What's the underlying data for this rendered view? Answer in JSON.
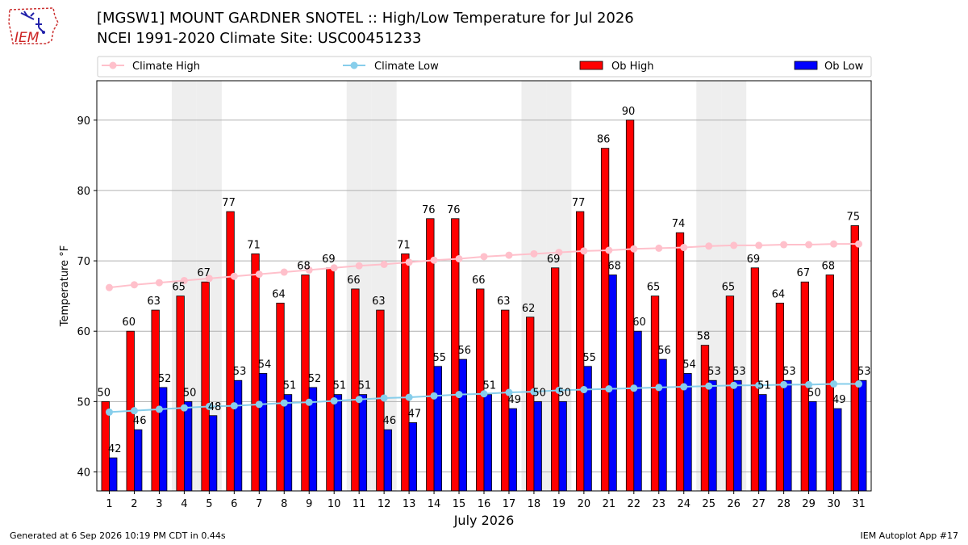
{
  "header": {
    "title_line1": "[MGSW1] MOUNT GARDNER SNOTEL :: High/Low Temperature for Jul 2026",
    "title_line2": "NCEI 1991-2020 Climate Site: USC00451233",
    "logo_text": "IEM"
  },
  "footer": {
    "left": "Generated at 6 Sep 2026 10:19 PM CDT in 0.44s",
    "right": "IEM Autoplot App #17"
  },
  "colors": {
    "ob_high": "#ff0000",
    "ob_low": "#0000ff",
    "climate_high": "#ffc0cb",
    "climate_low": "#87ceeb",
    "weekend_shade": "#eeeeee"
  },
  "chart_data": {
    "type": "bar",
    "xlabel": "July 2026",
    "ylabel": "Temperature °F",
    "ylim": [
      37.3,
      95.6
    ],
    "yticks": [
      40,
      50,
      60,
      70,
      80,
      90
    ],
    "grid": "horizontal",
    "legend_position": "top",
    "categories": [
      1,
      2,
      3,
      4,
      5,
      6,
      7,
      8,
      9,
      10,
      11,
      12,
      13,
      14,
      15,
      16,
      17,
      18,
      19,
      20,
      21,
      22,
      23,
      24,
      25,
      26,
      27,
      28,
      29,
      30,
      31
    ],
    "shaded_days": [
      4,
      5,
      11,
      12,
      18,
      19,
      25,
      26
    ],
    "series": [
      {
        "name": "Climate High",
        "type": "line",
        "values": [
          66.2,
          66.6,
          66.9,
          67.2,
          67.5,
          67.8,
          68.1,
          68.4,
          68.7,
          69.0,
          69.3,
          69.5,
          69.8,
          70.1,
          70.3,
          70.6,
          70.8,
          71.0,
          71.2,
          71.4,
          71.5,
          71.7,
          71.8,
          71.9,
          72.1,
          72.2,
          72.2,
          72.3,
          72.3,
          72.4,
          72.4
        ]
      },
      {
        "name": "Climate Low",
        "type": "line",
        "values": [
          48.5,
          48.7,
          48.9,
          49.1,
          49.3,
          49.4,
          49.6,
          49.8,
          49.9,
          50.1,
          50.3,
          50.5,
          50.6,
          50.8,
          51.0,
          51.1,
          51.3,
          51.4,
          51.6,
          51.7,
          51.8,
          51.9,
          52.0,
          52.1,
          52.2,
          52.3,
          52.3,
          52.4,
          52.4,
          52.5,
          52.5
        ]
      },
      {
        "name": "Ob High",
        "type": "bar",
        "values": [
          50,
          60,
          63,
          65,
          67,
          77,
          71,
          64,
          68,
          69,
          66,
          63,
          71,
          76,
          76,
          66,
          63,
          62,
          69,
          77,
          86,
          90,
          65,
          74,
          58,
          65,
          69,
          64,
          67,
          68,
          75
        ]
      },
      {
        "name": "Ob Low",
        "type": "bar",
        "values": [
          42,
          46,
          52,
          50,
          48,
          53,
          54,
          51,
          52,
          51,
          51,
          46,
          47,
          55,
          56,
          51,
          49,
          50,
          50,
          55,
          68,
          60,
          56,
          54,
          53,
          53,
          51,
          53,
          50,
          49,
          53
        ]
      }
    ]
  }
}
